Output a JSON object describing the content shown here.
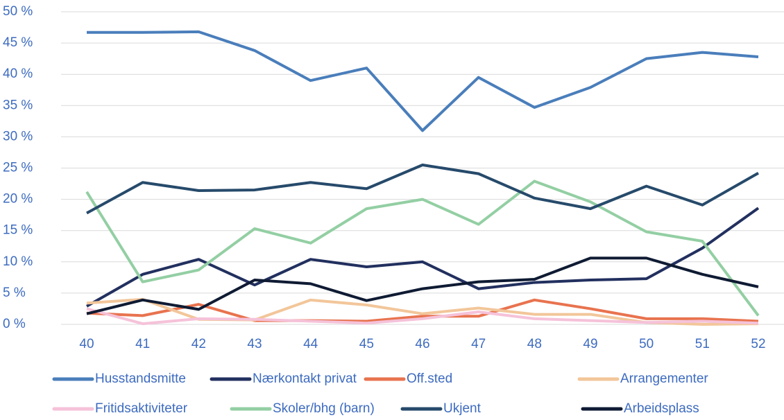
{
  "chart_data": {
    "type": "line",
    "categories": [
      "40",
      "41",
      "42",
      "43",
      "44",
      "45",
      "46",
      "47",
      "48",
      "49",
      "50",
      "51",
      "52"
    ],
    "ylim": [
      0,
      50
    ],
    "yticks": [
      {
        "value": 0,
        "label": "0 %"
      },
      {
        "value": 5,
        "label": "5 %"
      },
      {
        "value": 10,
        "label": "10 %"
      },
      {
        "value": 15,
        "label": "15 %"
      },
      {
        "value": 20,
        "label": "20 %"
      },
      {
        "value": 25,
        "label": "25 %"
      },
      {
        "value": 30,
        "label": "30 %"
      },
      {
        "value": 35,
        "label": "35 %"
      },
      {
        "value": 40,
        "label": "40 %"
      },
      {
        "value": 45,
        "label": "45 %"
      },
      {
        "value": 50,
        "label": "50 %"
      }
    ],
    "grid": true,
    "legend": "bottom",
    "series": [
      {
        "name": "Husstandsmitte",
        "color": "#4a7ebb",
        "values": [
          46.7,
          46.7,
          46.8,
          43.8,
          39.0,
          41.0,
          31.0,
          39.5,
          34.7,
          37.9,
          42.5,
          43.5,
          42.8
        ]
      },
      {
        "name": "Nærkontakt privat",
        "color": "#22305f",
        "values": [
          2.9,
          8.0,
          10.4,
          6.3,
          10.4,
          9.2,
          10.0,
          5.7,
          6.7,
          7.1,
          7.3,
          12.2,
          18.6
        ]
      },
      {
        "name": "Off.sted",
        "color": "#e8734f",
        "values": [
          1.8,
          1.4,
          3.2,
          0.6,
          0.6,
          0.5,
          1.3,
          1.3,
          3.9,
          2.5,
          0.9,
          0.9,
          0.5
        ]
      },
      {
        "name": "Arrangementer",
        "color": "#f2c69a",
        "values": [
          3.4,
          4.0,
          0.8,
          0.7,
          3.9,
          3.1,
          1.7,
          2.6,
          1.6,
          1.6,
          0.3,
          0.0,
          0.1
        ]
      },
      {
        "name": "Fritidsaktiviteter",
        "color": "#f5c2d9",
        "values": [
          2.5,
          0.1,
          0.9,
          0.8,
          0.5,
          0.2,
          0.9,
          2.0,
          0.9,
          0.6,
          0.3,
          0.5,
          0.2
        ]
      },
      {
        "name": "Skoler/bhg (barn)",
        "color": "#93cfa3",
        "values": [
          21.2,
          6.8,
          8.7,
          15.3,
          13.0,
          18.5,
          20.0,
          16.0,
          22.9,
          19.6,
          14.8,
          13.3,
          1.4
        ]
      },
      {
        "name": "Ukjent",
        "color": "#264a6b",
        "values": [
          17.8,
          22.7,
          21.4,
          21.5,
          22.7,
          21.7,
          25.5,
          24.1,
          20.2,
          18.5,
          22.1,
          19.1,
          24.2
        ]
      },
      {
        "name": "Arbeidsplass",
        "color": "#0f1b33",
        "values": [
          1.7,
          3.9,
          2.4,
          7.1,
          6.5,
          3.8,
          5.7,
          6.8,
          7.2,
          10.6,
          10.6,
          8.0,
          6.0
        ]
      }
    ]
  }
}
